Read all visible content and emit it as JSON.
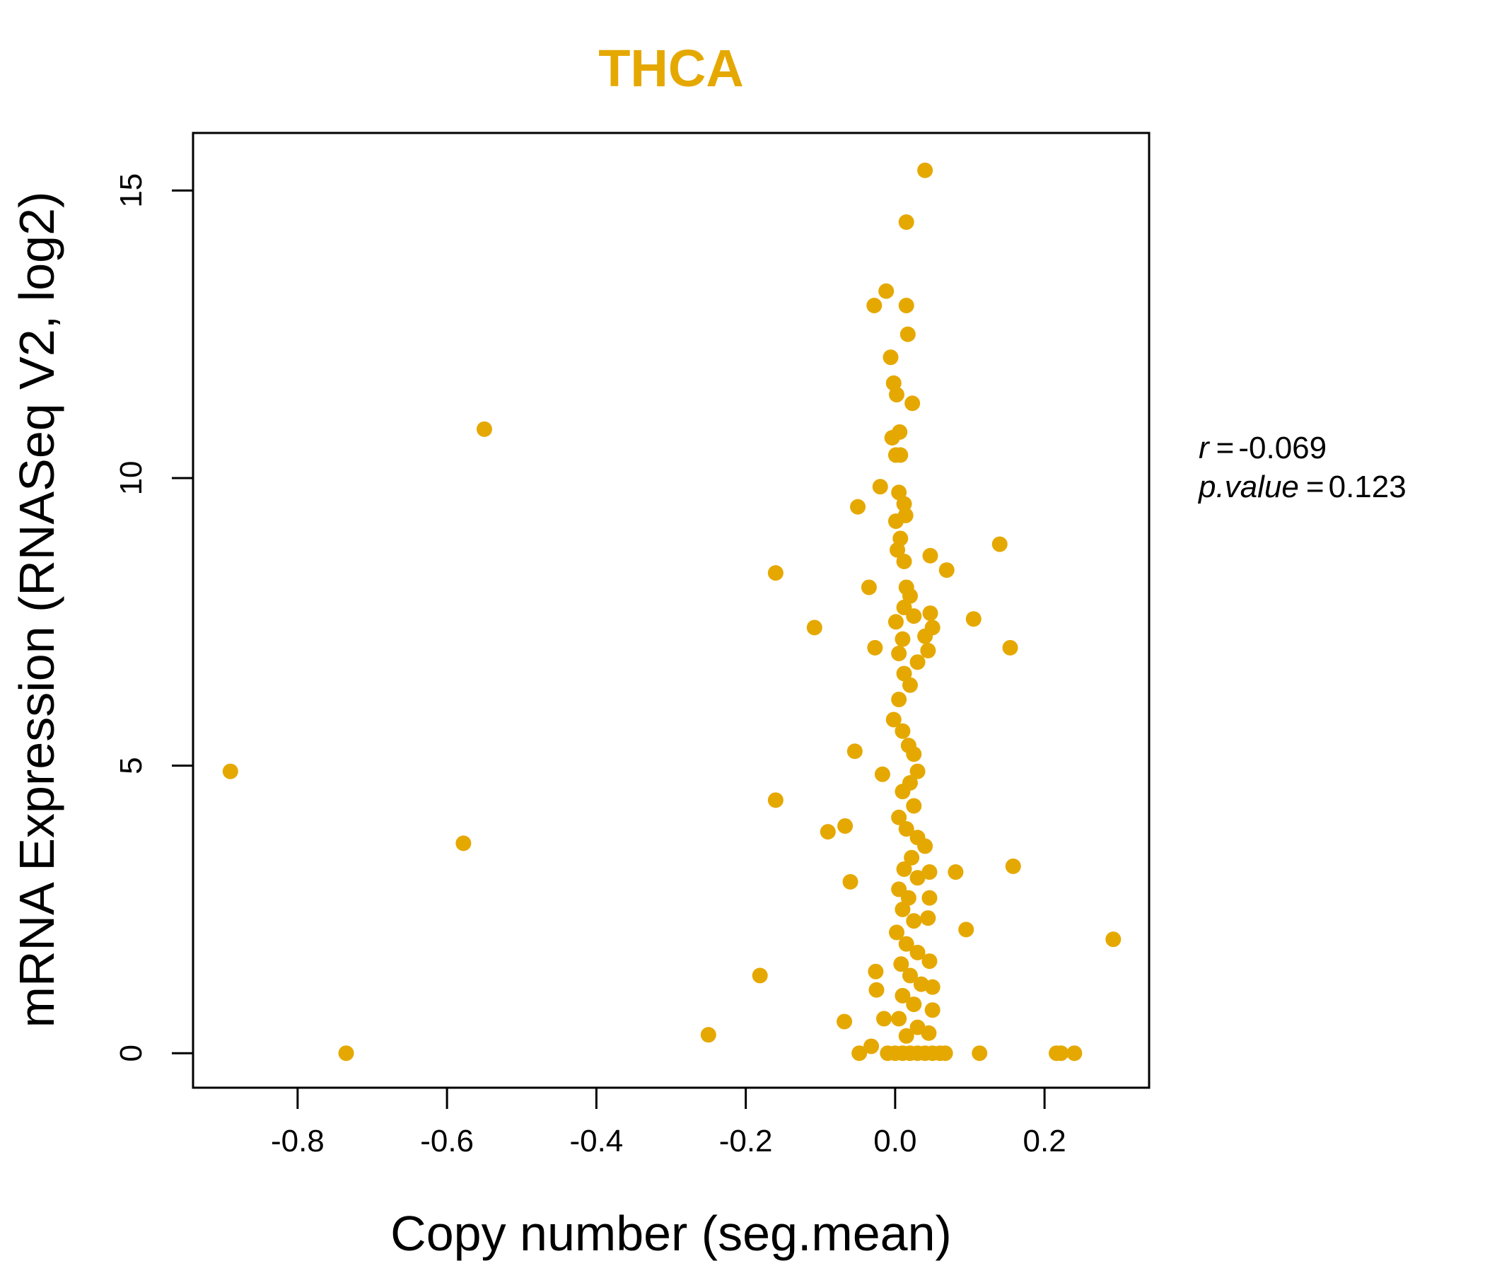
{
  "chart_data": {
    "type": "scatter",
    "title": "THCA",
    "title_color": "#E5A800",
    "point_color": "#E5A800",
    "xlabel": "Copy number (seg.mean)",
    "ylabel": "mRNA Expression (RNASeq V2, log2)",
    "xlim": [
      -0.94,
      0.34
    ],
    "ylim": [
      -0.6,
      16.0
    ],
    "x_ticks": [
      -0.8,
      -0.6,
      -0.4,
      -0.2,
      0.0,
      0.2
    ],
    "x_tick_labels": [
      "-0.8",
      "-0.6",
      "-0.4",
      "-0.2",
      "0.0",
      "0.2"
    ],
    "y_ticks": [
      0,
      5,
      10,
      15
    ],
    "y_tick_labels": [
      "0",
      "5",
      "10",
      "15"
    ],
    "grid": false,
    "stats": {
      "r_label": "r",
      "r_value": "-0.069",
      "p_label": "p.value",
      "p_value": "0.123"
    },
    "points": [
      [
        -0.89,
        4.9
      ],
      [
        -0.735,
        0.0
      ],
      [
        -0.578,
        3.65
      ],
      [
        -0.55,
        10.85
      ],
      [
        -0.25,
        0.32
      ],
      [
        -0.181,
        1.35
      ],
      [
        -0.16,
        8.35
      ],
      [
        -0.16,
        4.4
      ],
      [
        -0.108,
        7.4
      ],
      [
        -0.09,
        3.85
      ],
      [
        -0.067,
        3.95
      ],
      [
        -0.068,
        0.55
      ],
      [
        -0.06,
        2.98
      ],
      [
        -0.054,
        5.25
      ],
      [
        -0.05,
        9.5
      ],
      [
        -0.048,
        0.0
      ],
      [
        -0.035,
        8.1
      ],
      [
        -0.032,
        0.12
      ],
      [
        -0.028,
        13.0
      ],
      [
        -0.027,
        7.05
      ],
      [
        -0.025,
        1.1
      ],
      [
        -0.026,
        1.42
      ],
      [
        -0.02,
        9.85
      ],
      [
        -0.017,
        4.85
      ],
      [
        -0.015,
        0.6
      ],
      [
        -0.012,
        13.25
      ],
      [
        -0.006,
        12.1
      ],
      [
        -0.002,
        11.65
      ],
      [
        0.002,
        11.45
      ],
      [
        0.006,
        10.8
      ],
      [
        -0.004,
        10.7
      ],
      [
        0.007,
        10.4
      ],
      [
        0.001,
        10.4
      ],
      [
        0.005,
        9.75
      ],
      [
        0.012,
        9.55
      ],
      [
        0.014,
        9.35
      ],
      [
        0.001,
        9.25
      ],
      [
        0.007,
        8.95
      ],
      [
        0.003,
        8.75
      ],
      [
        0.012,
        8.55
      ],
      [
        0.015,
        8.1
      ],
      [
        0.02,
        7.95
      ],
      [
        0.012,
        7.75
      ],
      [
        0.025,
        7.6
      ],
      [
        0.001,
        7.5
      ],
      [
        0.01,
        7.2
      ],
      [
        0.005,
        6.95
      ],
      [
        0.012,
        6.6
      ],
      [
        0.02,
        6.4
      ],
      [
        0.005,
        6.15
      ],
      [
        -0.002,
        5.8
      ],
      [
        0.01,
        5.6
      ],
      [
        0.018,
        5.35
      ],
      [
        0.025,
        5.2
      ],
      [
        0.03,
        4.9
      ],
      [
        0.02,
        4.7
      ],
      [
        0.01,
        4.55
      ],
      [
        0.025,
        4.3
      ],
      [
        0.005,
        4.1
      ],
      [
        0.015,
        3.9
      ],
      [
        0.03,
        3.75
      ],
      [
        0.04,
        3.6
      ],
      [
        0.022,
        3.4
      ],
      [
        0.012,
        3.2
      ],
      [
        0.03,
        3.05
      ],
      [
        0.005,
        2.85
      ],
      [
        0.018,
        2.7
      ],
      [
        0.01,
        2.5
      ],
      [
        0.025,
        2.3
      ],
      [
        0.002,
        2.1
      ],
      [
        0.015,
        1.9
      ],
      [
        0.03,
        1.75
      ],
      [
        0.008,
        1.55
      ],
      [
        0.02,
        1.35
      ],
      [
        0.035,
        1.2
      ],
      [
        0.01,
        1.0
      ],
      [
        0.025,
        0.85
      ],
      [
        0.005,
        0.6
      ],
      [
        0.03,
        0.45
      ],
      [
        0.015,
        0.3
      ],
      [
        0.045,
        0.35
      ],
      [
        0.01,
        0.0
      ],
      [
        0.02,
        0.0
      ],
      [
        0.03,
        0.0
      ],
      [
        0.04,
        0.0
      ],
      [
        0.05,
        0.0
      ],
      [
        0.06,
        0.0
      ],
      [
        -0.01,
        0.0
      ],
      [
        0.0,
        0.0
      ],
      [
        0.067,
        0.0
      ],
      [
        0.04,
        15.35
      ],
      [
        0.015,
        14.45
      ],
      [
        0.015,
        13.0
      ],
      [
        0.017,
        12.5
      ],
      [
        0.023,
        11.3
      ],
      [
        0.047,
        8.65
      ],
      [
        0.069,
        8.4
      ],
      [
        0.047,
        7.65
      ],
      [
        0.05,
        7.4
      ],
      [
        0.044,
        7.0
      ],
      [
        0.04,
        7.25
      ],
      [
        0.03,
        6.8
      ],
      [
        0.046,
        3.15
      ],
      [
        0.046,
        2.7
      ],
      [
        0.044,
        2.35
      ],
      [
        0.046,
        1.6
      ],
      [
        0.05,
        1.15
      ],
      [
        0.05,
        0.75
      ],
      [
        0.081,
        3.15
      ],
      [
        0.095,
        2.15
      ],
      [
        0.105,
        7.55
      ],
      [
        0.113,
        0.0
      ],
      [
        0.14,
        8.85
      ],
      [
        0.154,
        7.05
      ],
      [
        0.158,
        3.25
      ],
      [
        0.216,
        0.0
      ],
      [
        0.222,
        0.0
      ],
      [
        0.24,
        0.0
      ],
      [
        0.292,
        1.98
      ]
    ]
  }
}
